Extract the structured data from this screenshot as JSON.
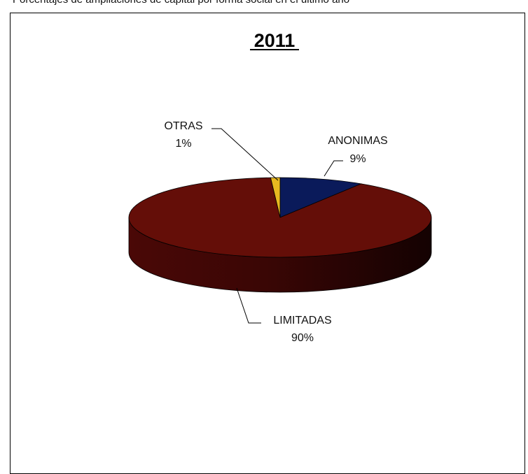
{
  "caption": "Porcentajes de ampliaciones de capital por forma social en el último año",
  "chart_data": {
    "type": "pie",
    "title": "2011",
    "categories": [
      "ANONIMAS",
      "LIMITADAS",
      "OTRAS"
    ],
    "values": [
      9,
      90,
      1
    ],
    "value_labels": [
      "9%",
      "90%",
      "1%"
    ],
    "colors": [
      "#0a1a5a",
      "#640e08",
      "#e8b820"
    ],
    "style": "3d",
    "legend": "none"
  }
}
